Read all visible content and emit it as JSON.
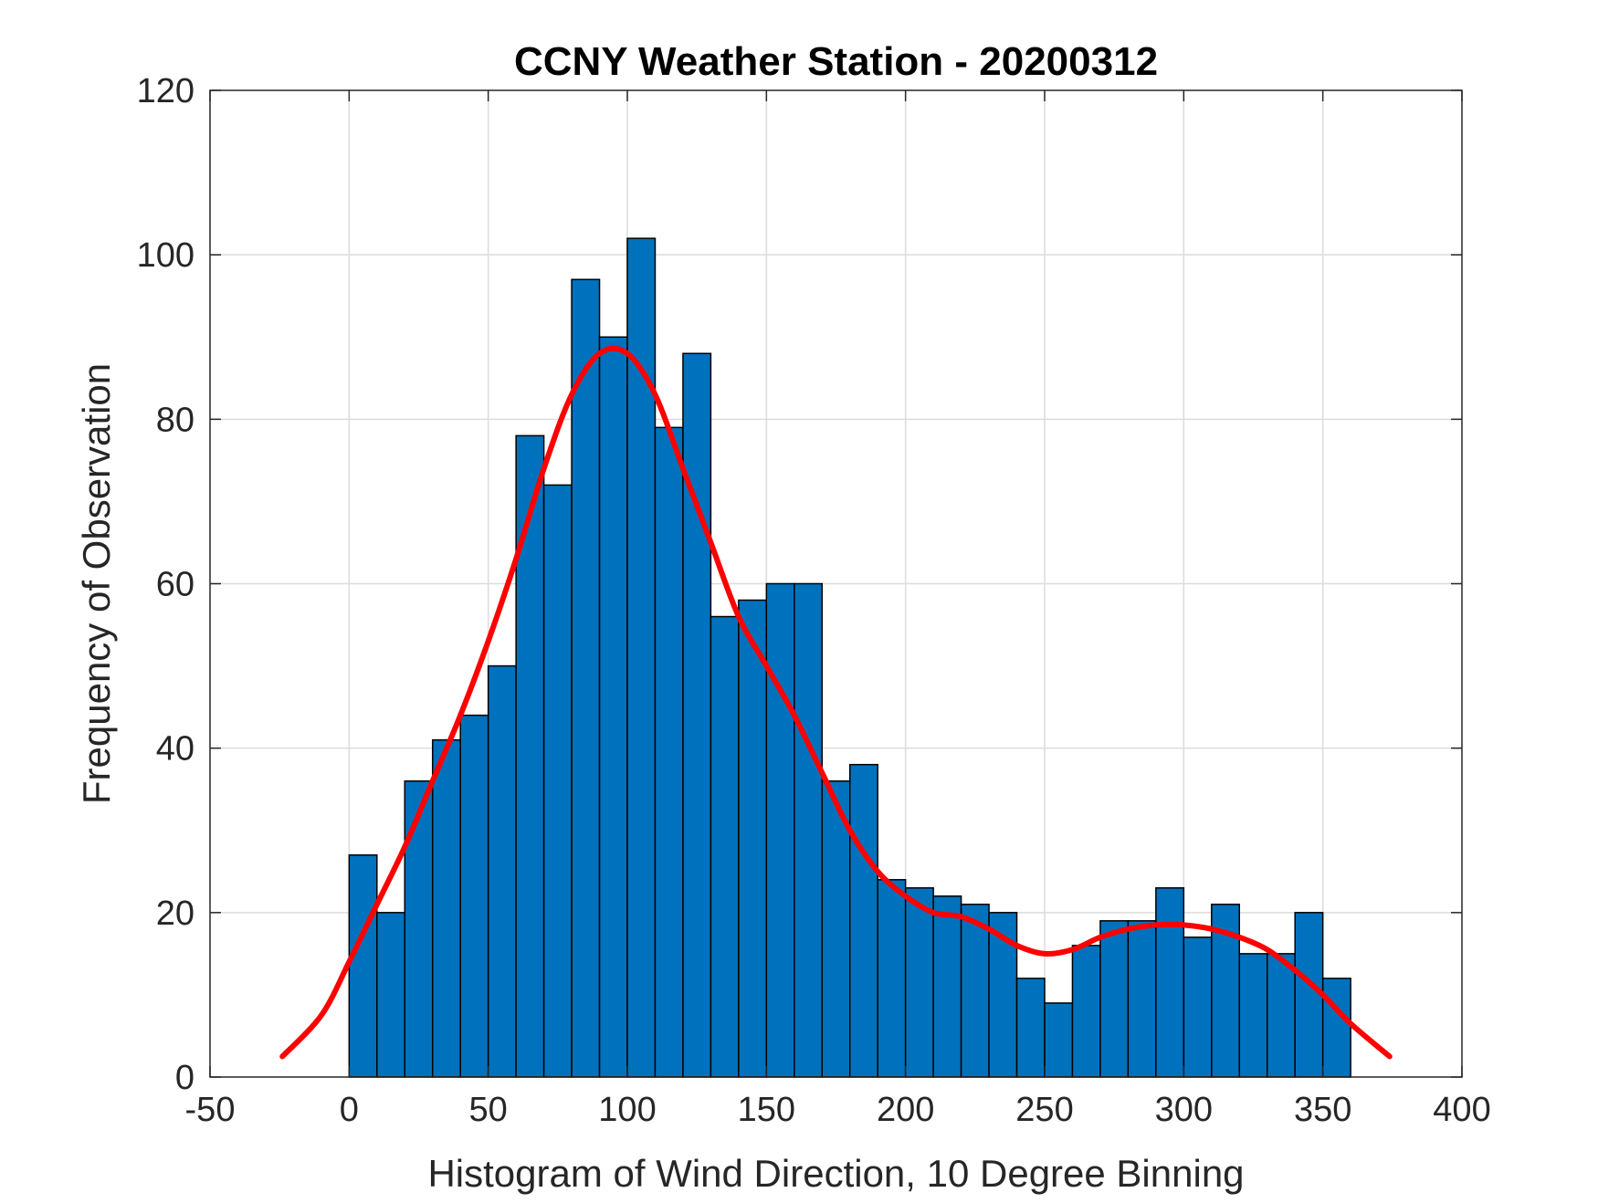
{
  "chart_data": {
    "type": "bar",
    "title": "CCNY Weather Station - 20200312",
    "xlabel": "Histogram of Wind Direction, 10 Degree Binning",
    "ylabel": "Frequency of Observation",
    "xlim": [
      -50,
      400
    ],
    "ylim": [
      0,
      120
    ],
    "xticks": [
      -50,
      0,
      50,
      100,
      150,
      200,
      250,
      300,
      350,
      400
    ],
    "yticks": [
      0,
      20,
      40,
      60,
      80,
      100,
      120
    ],
    "grid": true,
    "bin_width": 10,
    "series": [
      {
        "type": "histogram",
        "bin_edges": [
          0,
          10,
          20,
          30,
          40,
          50,
          60,
          70,
          80,
          90,
          100,
          110,
          120,
          130,
          140,
          150,
          160,
          170,
          180,
          190,
          200,
          210,
          220,
          230,
          240,
          250,
          260,
          270,
          280,
          290,
          300,
          310,
          320,
          330,
          340,
          350,
          360
        ],
        "values": [
          27,
          20,
          36,
          41,
          44,
          50,
          78,
          72,
          97,
          90,
          102,
          79,
          88,
          56,
          58,
          60,
          60,
          36,
          38,
          24,
          23,
          22,
          21,
          20,
          12,
          9,
          16,
          19,
          19,
          23,
          17,
          21,
          15,
          15,
          20,
          12
        ],
        "color": "#0072BD"
      },
      {
        "type": "line",
        "x": [
          -24,
          -10,
          0,
          10,
          20,
          30,
          40,
          50,
          60,
          70,
          80,
          90,
          100,
          110,
          120,
          130,
          140,
          150,
          160,
          170,
          180,
          190,
          200,
          210,
          220,
          230,
          240,
          250,
          260,
          270,
          280,
          290,
          300,
          310,
          320,
          330,
          340,
          350,
          360,
          374
        ],
        "values": [
          2.5,
          7.5,
          14,
          21,
          28,
          36,
          44,
          53,
          63,
          74,
          83,
          88,
          88,
          83,
          74,
          65,
          56,
          50,
          44,
          37,
          30,
          25,
          22,
          20,
          19.5,
          18,
          16,
          15,
          15.5,
          17,
          18,
          18.5,
          18.5,
          18,
          17,
          15.5,
          13,
          10,
          6.5,
          2.5
        ],
        "color": "#FF0000"
      }
    ]
  }
}
